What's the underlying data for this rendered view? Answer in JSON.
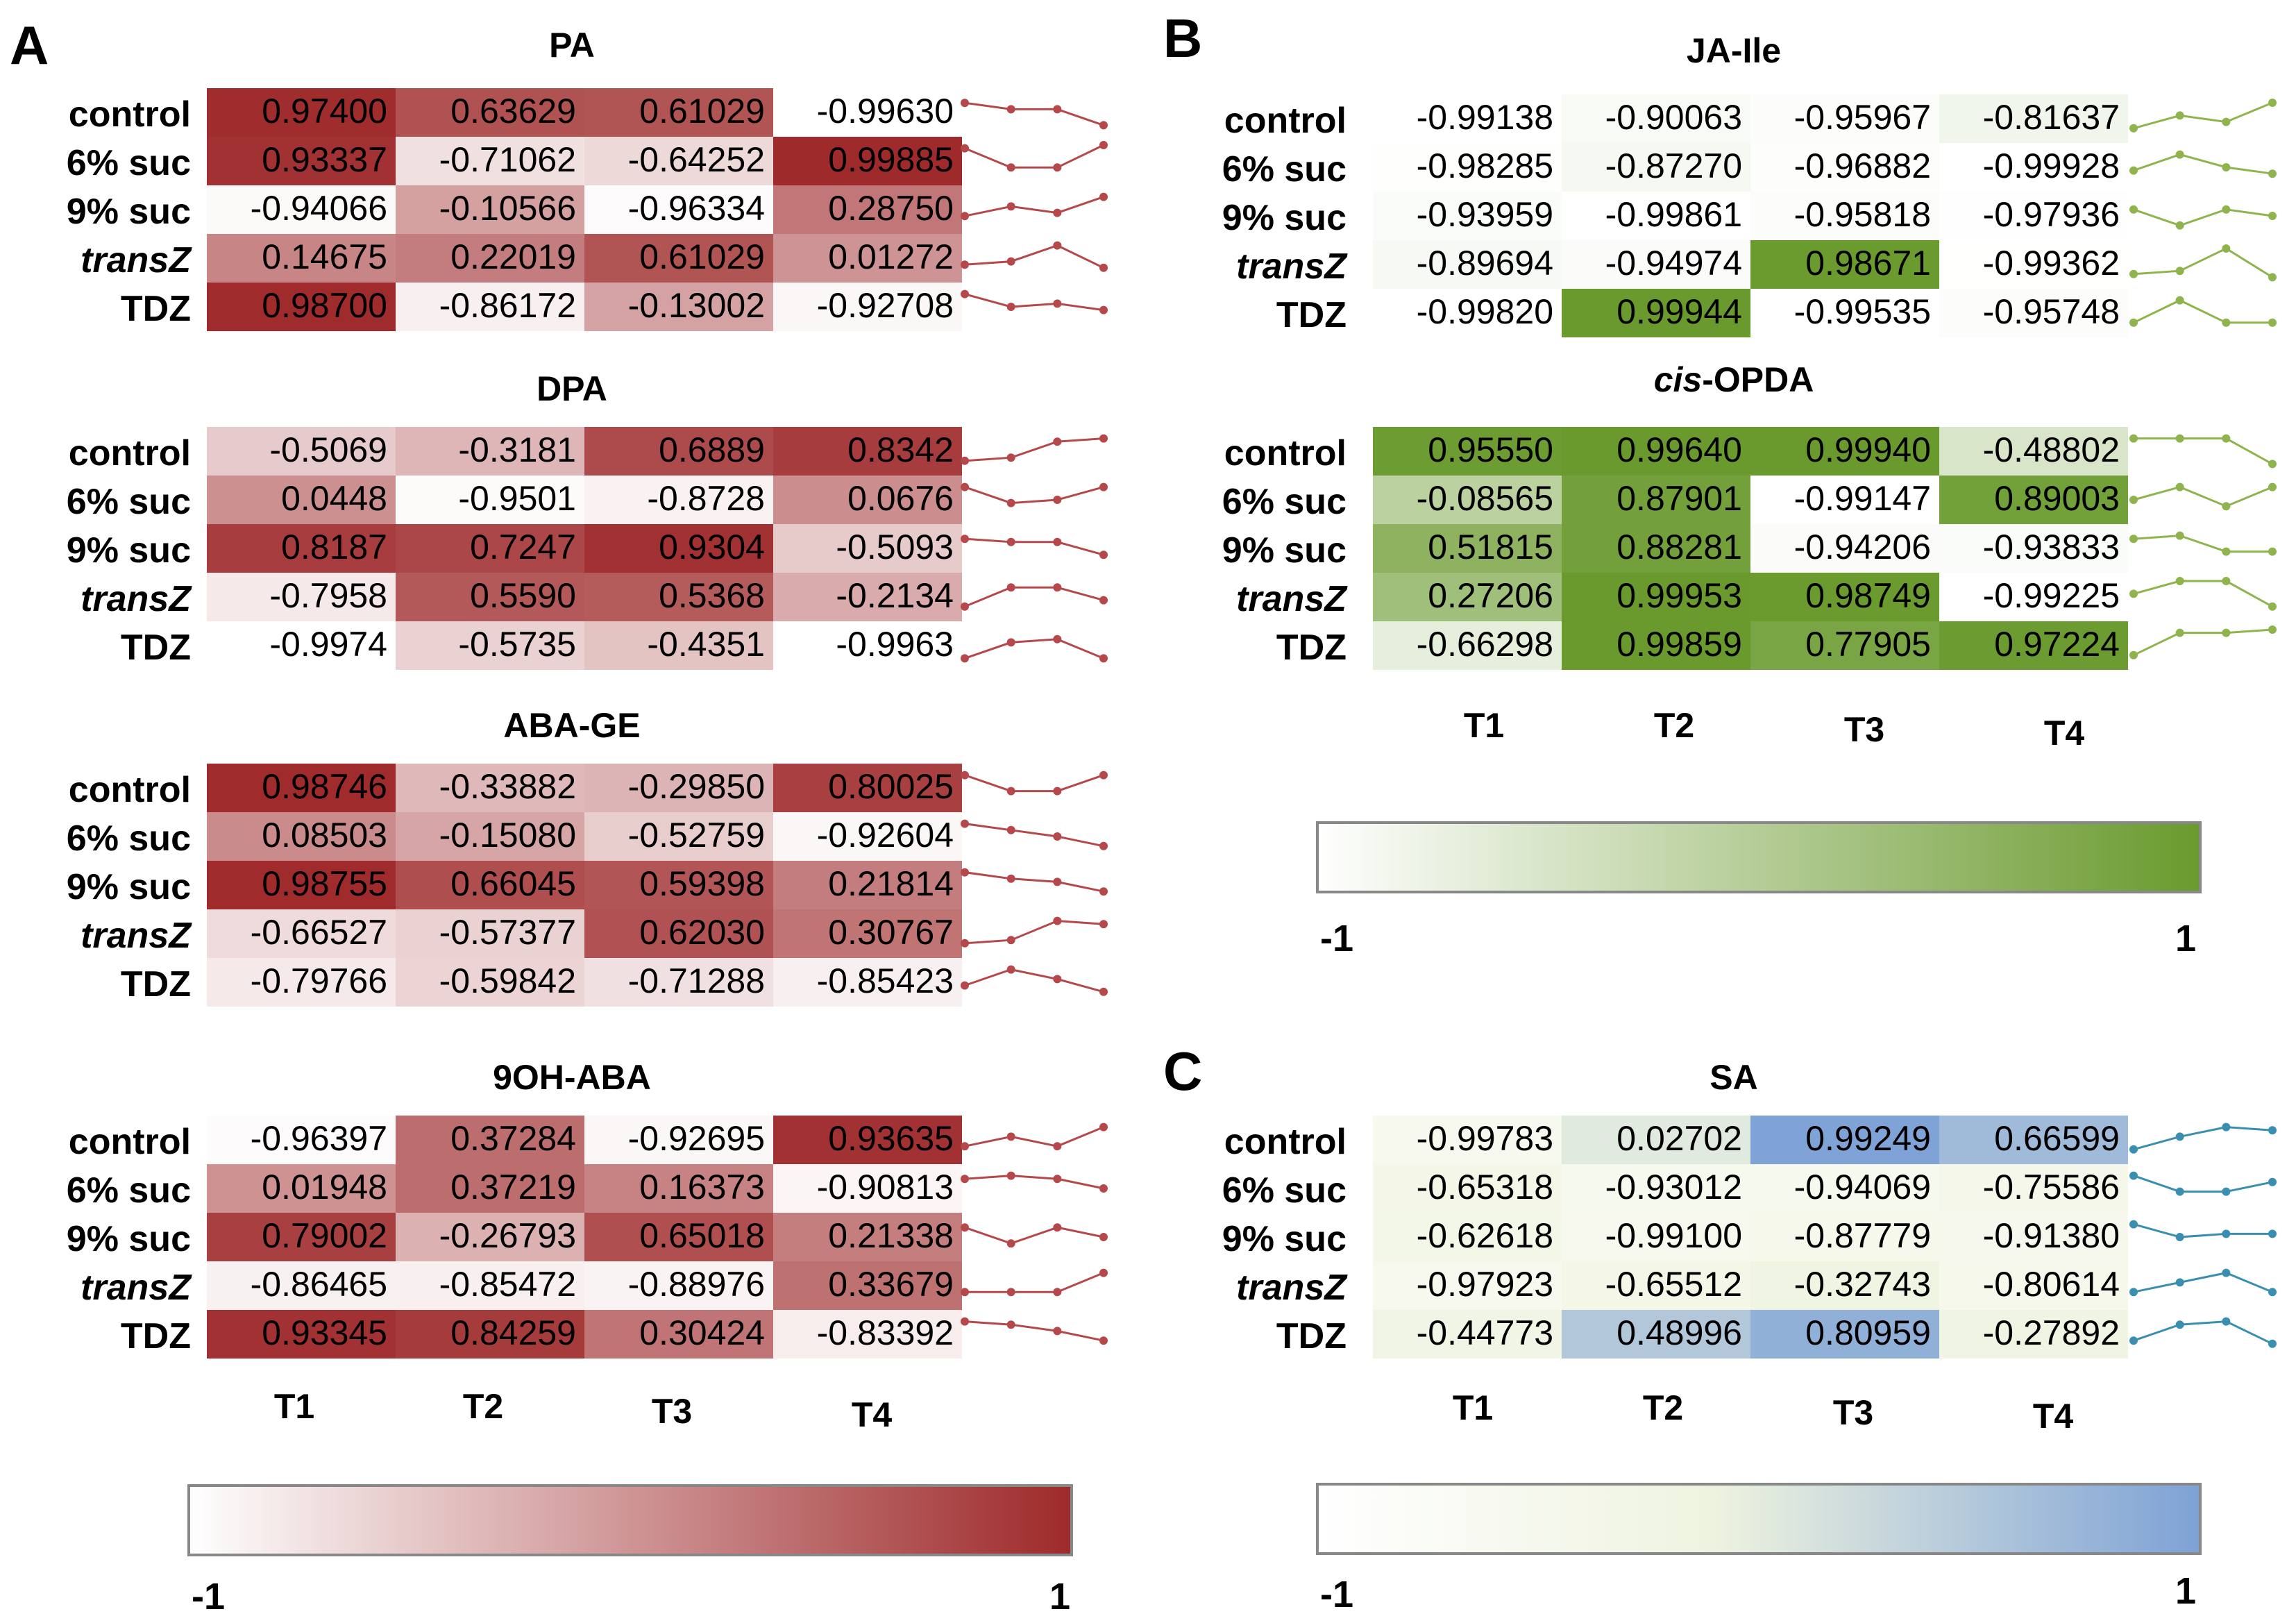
{
  "panels": {
    "A": "A",
    "B": "B",
    "C": "C"
  },
  "columns": [
    "T1",
    "T2",
    "T3",
    "T4"
  ],
  "colors": {
    "red": "#9e2a2b",
    "green": "#6a9a2e",
    "blue": "#7ea2d6",
    "sa_low": "#f7f9ee",
    "low": "#ffffff"
  },
  "scales": {
    "red": {
      "min_label": "-1",
      "max_label": "1"
    },
    "green": {
      "min_label": "-1",
      "max_label": "1"
    },
    "blue": {
      "min_label": "-1",
      "max_label": "1"
    }
  },
  "chart_data": [
    {
      "type": "heatmap",
      "id": "PA",
      "title": "PA",
      "scheme": "red",
      "rows": [
        "control",
        "6% suc",
        "9% suc",
        "transZ",
        "TDZ"
      ],
      "row_italic": [
        false,
        false,
        false,
        true,
        false
      ],
      "columns": [
        "T1",
        "T2",
        "T3",
        "T4"
      ],
      "values": [
        [
          "0.97400",
          "0.63629",
          "0.61029",
          "-0.99630"
        ],
        [
          "0.93337",
          "-0.71062",
          "-0.64252",
          "0.99885"
        ],
        [
          "-0.94066",
          "-0.10566",
          "-0.96334",
          "0.28750"
        ],
        [
          "0.14675",
          "0.22019",
          "0.61029",
          "0.01272"
        ],
        [
          "0.98700",
          "-0.86172",
          "-0.13002",
          "-0.92708"
        ]
      ],
      "trend": [
        [
          0.8,
          0.6,
          0.6,
          0.1
        ],
        [
          0.9,
          0.3,
          0.3,
          1.0
        ],
        [
          0.3,
          0.6,
          0.4,
          0.9
        ],
        [
          0.3,
          0.4,
          0.9,
          0.2
        ],
        [
          0.9,
          0.5,
          0.6,
          0.4
        ]
      ],
      "zlim": [
        -1,
        1
      ]
    },
    {
      "type": "heatmap",
      "id": "DPA",
      "title": "DPA",
      "scheme": "red",
      "rows": [
        "control",
        "6% suc",
        "9% suc",
        "transZ",
        "TDZ"
      ],
      "row_italic": [
        false,
        false,
        false,
        true,
        false
      ],
      "columns": [
        "T1",
        "T2",
        "T3",
        "T4"
      ],
      "values": [
        [
          "-0.5069",
          "-0.3181",
          "0.6889",
          "0.8342"
        ],
        [
          "0.0448",
          "-0.9501",
          "-0.8728",
          "0.0676"
        ],
        [
          "0.8187",
          "0.7247",
          "0.9304",
          "-0.5093"
        ],
        [
          "-0.7958",
          "0.5590",
          "0.5368",
          "-0.2134"
        ],
        [
          "-0.9974",
          "-0.5735",
          "-0.4351",
          "-0.9963"
        ]
      ],
      "trend": [
        [
          0.2,
          0.3,
          0.8,
          0.9
        ],
        [
          0.9,
          0.4,
          0.5,
          0.9
        ],
        [
          0.8,
          0.7,
          0.7,
          0.3
        ],
        [
          0.2,
          0.8,
          0.8,
          0.4
        ],
        [
          0.1,
          0.6,
          0.7,
          0.1
        ]
      ],
      "zlim": [
        -1,
        1
      ]
    },
    {
      "type": "heatmap",
      "id": "ABA-GE",
      "title": "ABA-GE",
      "scheme": "red",
      "rows": [
        "control",
        "6% suc",
        "9% suc",
        "transZ",
        "TDZ"
      ],
      "row_italic": [
        false,
        false,
        false,
        true,
        false
      ],
      "columns": [
        "T1",
        "T2",
        "T3",
        "T4"
      ],
      "values": [
        [
          "0.98746",
          "-0.33882",
          "-0.29850",
          "0.80025"
        ],
        [
          "0.08503",
          "-0.15080",
          "-0.52759",
          "-0.92604"
        ],
        [
          "0.98755",
          "0.66045",
          "0.59398",
          "0.21814"
        ],
        [
          "-0.66527",
          "-0.57377",
          "0.62030",
          "0.30767"
        ],
        [
          "-0.79766",
          "-0.59842",
          "-0.71288",
          "-0.85423"
        ]
      ],
      "trend": [
        [
          0.9,
          0.4,
          0.4,
          0.9
        ],
        [
          0.9,
          0.7,
          0.5,
          0.2
        ],
        [
          0.9,
          0.7,
          0.6,
          0.3
        ],
        [
          0.2,
          0.3,
          0.9,
          0.8
        ],
        [
          0.4,
          0.9,
          0.6,
          0.2
        ]
      ],
      "zlim": [
        -1,
        1
      ]
    },
    {
      "type": "heatmap",
      "id": "9OH-ABA",
      "title": "9OH-ABA",
      "scheme": "red",
      "rows": [
        "control",
        "6% suc",
        "9% suc",
        "transZ",
        "TDZ"
      ],
      "row_italic": [
        false,
        false,
        false,
        true,
        false
      ],
      "columns": [
        "T1",
        "T2",
        "T3",
        "T4"
      ],
      "values": [
        [
          "-0.96397",
          "0.37284",
          "-0.92695",
          "0.93635"
        ],
        [
          "0.01948",
          "0.37219",
          "0.16373",
          "-0.90813"
        ],
        [
          "0.79002",
          "-0.26793",
          "0.65018",
          "0.21338"
        ],
        [
          "-0.86465",
          "-0.85472",
          "-0.88976",
          "0.33679"
        ],
        [
          "0.93345",
          "0.84259",
          "0.30424",
          "-0.83392"
        ]
      ],
      "trend": [
        [
          0.3,
          0.6,
          0.3,
          0.9
        ],
        [
          0.8,
          0.9,
          0.8,
          0.5
        ],
        [
          0.8,
          0.3,
          0.8,
          0.5
        ],
        [
          0.3,
          0.3,
          0.3,
          0.9
        ],
        [
          0.9,
          0.8,
          0.6,
          0.3
        ]
      ],
      "zlim": [
        -1,
        1
      ]
    },
    {
      "type": "heatmap",
      "id": "JA-Ile",
      "title": "JA-Ile",
      "scheme": "green",
      "rows": [
        "control",
        "6% suc",
        "9% suc",
        "transZ",
        "TDZ"
      ],
      "row_italic": [
        false,
        false,
        false,
        true,
        false
      ],
      "columns": [
        "T1",
        "T2",
        "T3",
        "T4"
      ],
      "values": [
        [
          "-0.99138",
          "-0.90063",
          "-0.95967",
          "-0.81637"
        ],
        [
          "-0.98285",
          "-0.87270",
          "-0.96882",
          "-0.99928"
        ],
        [
          "-0.93959",
          "-0.99861",
          "-0.95818",
          "-0.97936"
        ],
        [
          "-0.89694",
          "-0.94974",
          "0.98671",
          "-0.99362"
        ],
        [
          "-0.99820",
          "0.99944",
          "-0.99535",
          "-0.95748"
        ]
      ],
      "trend": [
        [
          0.2,
          0.6,
          0.4,
          1.0
        ],
        [
          0.4,
          0.9,
          0.5,
          0.3
        ],
        [
          0.7,
          0.2,
          0.7,
          0.5
        ],
        [
          0.2,
          0.3,
          1.0,
          0.1
        ],
        [
          0.2,
          0.9,
          0.2,
          0.2
        ]
      ],
      "zlim": [
        -1,
        1
      ]
    },
    {
      "type": "heatmap",
      "id": "cis-OPDA",
      "title_prefix": "cis",
      "title_suffix": "-OPDA",
      "scheme": "green",
      "rows": [
        "control",
        "6% suc",
        "9% suc",
        "transZ",
        "TDZ"
      ],
      "row_italic": [
        false,
        false,
        false,
        true,
        false
      ],
      "columns": [
        "T1",
        "T2",
        "T3",
        "T4"
      ],
      "values": [
        [
          "0.95550",
          "0.99640",
          "0.99940",
          "-0.48802"
        ],
        [
          "-0.08565",
          "0.87901",
          "-0.99147",
          "0.89003"
        ],
        [
          "0.51815",
          "0.88281",
          "-0.94206",
          "-0.93833"
        ],
        [
          "0.27206",
          "0.99953",
          "0.98749",
          "-0.99225"
        ],
        [
          "-0.66298",
          "0.99859",
          "0.77905",
          "0.97224"
        ]
      ],
      "trend": [
        [
          0.9,
          0.9,
          0.9,
          0.1
        ],
        [
          0.5,
          0.9,
          0.3,
          0.9
        ],
        [
          0.8,
          0.9,
          0.4,
          0.4
        ],
        [
          0.6,
          1.0,
          1.0,
          0.2
        ],
        [
          0.2,
          0.9,
          0.9,
          1.0
        ]
      ],
      "zlim": [
        -1,
        1
      ]
    },
    {
      "type": "heatmap",
      "id": "SA",
      "title": "SA",
      "scheme": "blue",
      "rows": [
        "control",
        "6% suc",
        "9% suc",
        "transZ",
        "TDZ"
      ],
      "row_italic": [
        false,
        false,
        false,
        true,
        false
      ],
      "columns": [
        "T1",
        "T2",
        "T3",
        "T4"
      ],
      "values": [
        [
          "-0.99783",
          "0.02702",
          "0.99249",
          "0.66599"
        ],
        [
          "-0.65318",
          "-0.93012",
          "-0.94069",
          "-0.75586"
        ],
        [
          "-0.62618",
          "-0.99100",
          "-0.87779",
          "-0.91380"
        ],
        [
          "-0.97923",
          "-0.65512",
          "-0.32743",
          "-0.80614"
        ],
        [
          "-0.44773",
          "0.48996",
          "0.80959",
          "-0.27892"
        ]
      ],
      "trend": [
        [
          0.2,
          0.6,
          0.9,
          0.8
        ],
        [
          0.9,
          0.4,
          0.4,
          0.7
        ],
        [
          0.9,
          0.5,
          0.6,
          0.6
        ],
        [
          0.3,
          0.6,
          0.9,
          0.3
        ],
        [
          0.3,
          0.8,
          0.9,
          0.2
        ]
      ],
      "zlim": [
        -1,
        1
      ]
    }
  ]
}
